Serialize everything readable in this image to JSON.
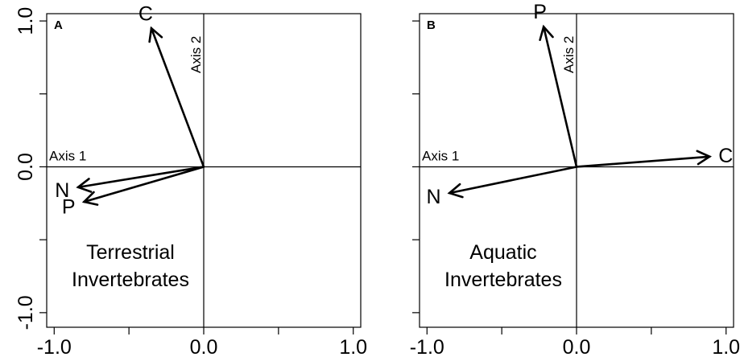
{
  "chart_data": [
    {
      "type": "biplot",
      "panel_label": "A",
      "xlim": [
        -1.05,
        1.05
      ],
      "ylim": [
        -1.1,
        1.05
      ],
      "x_ticks": [
        -1.0,
        -0.5,
        0.0,
        0.5,
        1.0
      ],
      "x_tick_labels": [
        "-1.0",
        "",
        "0.0",
        "",
        "1.0"
      ],
      "y_ticks": [
        -1.0,
        -0.5,
        0.0,
        0.5,
        1.0
      ],
      "y_tick_labels": [
        "-1.0",
        "",
        "0.0",
        "",
        "1.0"
      ],
      "axis1_label": "Axis 1",
      "axis2_label": "Axis 2",
      "group_label": [
        "Terrestrial",
        "Invertebrates"
      ],
      "vectors": [
        {
          "name": "C",
          "x": -0.35,
          "y": 0.95
        },
        {
          "name": "N",
          "x": -0.84,
          "y": -0.14
        },
        {
          "name": "P",
          "x": -0.8,
          "y": -0.24
        }
      ]
    },
    {
      "type": "biplot",
      "panel_label": "B",
      "xlim": [
        -1.05,
        1.05
      ],
      "ylim": [
        -1.1,
        1.05
      ],
      "x_ticks": [
        -1.0,
        -0.5,
        0.0,
        0.5,
        1.0
      ],
      "x_tick_labels": [
        "-1.0",
        "",
        "0.0",
        "",
        "1.0"
      ],
      "y_ticks": [
        -1.0,
        -0.5,
        0.0,
        0.5,
        1.0
      ],
      "y_tick_labels": [
        "",
        "",
        "",
        "",
        ""
      ],
      "axis1_label": "Axis 1",
      "axis2_label": "Axis 2",
      "group_label": [
        "Aquatic",
        "Invertebrates"
      ],
      "vectors": [
        {
          "name": "C",
          "x": 0.89,
          "y": 0.07
        },
        {
          "name": "N",
          "x": -0.85,
          "y": -0.18
        },
        {
          "name": "P",
          "x": -0.22,
          "y": 0.96
        }
      ]
    }
  ]
}
